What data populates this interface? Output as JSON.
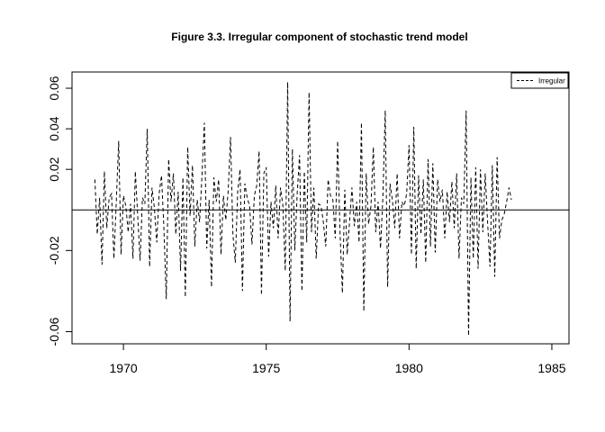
{
  "chart_data": {
    "type": "line",
    "title": "Figure 3.3. Irregular component of stochastic trend model",
    "xlabel": "",
    "ylabel": "",
    "xlim": [
      1968.2,
      1985.6
    ],
    "ylim": [
      -0.066,
      0.068
    ],
    "x_ticks": [
      1970,
      1975,
      1980,
      1985
    ],
    "y_ticks": [
      -0.06,
      -0.02,
      0.02,
      0.04,
      0.06
    ],
    "x_tick_labels": [
      "1970",
      "1975",
      "1980",
      "1985"
    ],
    "y_tick_labels": [
      "-0.06",
      "-0.02",
      "0.02",
      "0.04",
      "0.06"
    ],
    "reference_line": 0,
    "legend": {
      "position": "top-right",
      "entries": [
        "Irregular"
      ]
    },
    "grid": false,
    "series": [
      {
        "name": "Irregular",
        "line_style": "dashed",
        "color": "#000000",
        "start": 1969.0,
        "frequency": 12,
        "values": [
          0.015,
          -0.012,
          0.006,
          -0.027,
          0.019,
          -0.009,
          0.006,
          0.008,
          -0.024,
          0.004,
          0.034,
          -0.022,
          0.007,
          0.002,
          -0.011,
          0.003,
          -0.024,
          0.019,
          -0.003,
          -0.025,
          0.006,
          0.003,
          0.04,
          -0.028,
          0.011,
          0.001,
          -0.016,
          0.008,
          0.017,
          -0.009,
          -0.044,
          0.025,
          0.004,
          0.018,
          -0.012,
          0.009,
          -0.03,
          0.016,
          -0.043,
          0.031,
          -0.003,
          0.022,
          -0.018,
          0.005,
          -0.006,
          0.017,
          0.043,
          -0.019,
          0.005,
          -0.038,
          0.016,
          0.004,
          0.015,
          -0.022,
          0.007,
          -0.005,
          0.009,
          0.036,
          -0.012,
          -0.026,
          0.009,
          0.02,
          -0.04,
          0.013,
          0.006,
          0.002,
          -0.017,
          0.007,
          0.012,
          0.029,
          -0.042,
          0.018,
          0.021,
          -0.023,
          0.004,
          -0.009,
          0.012,
          -0.014,
          0.011,
          0.002,
          -0.03,
          0.063,
          -0.055,
          0.03,
          -0.02,
          0.008,
          0.027,
          -0.04,
          0.019,
          -0.016,
          0.058,
          -0.011,
          0.011,
          -0.024,
          0.003,
          0.002,
          -0.006,
          -0.018,
          0.015,
          0.007,
          0.005,
          -0.014,
          0.034,
          -0.011,
          -0.041,
          0.01,
          -0.022,
          -0.006,
          0.011,
          -0.008,
          0.004,
          -0.016,
          0.043,
          -0.05,
          0.018,
          -0.007,
          0.002,
          0.031,
          -0.011,
          0.004,
          -0.019,
          0.006,
          0.049,
          -0.038,
          0.013,
          0.005,
          -0.009,
          0.018,
          -0.014,
          0.004,
          0.002,
          0.008,
          0.032,
          -0.022,
          0.041,
          -0.029,
          0.017,
          -0.012,
          0.015,
          -0.026,
          0.025,
          -0.018,
          0.023,
          -0.021,
          0.015,
          0.004,
          0.01,
          -0.014,
          0.009,
          -0.006,
          0.014,
          -0.009,
          0.018,
          -0.024,
          0.006,
          0.003,
          0.049,
          -0.062,
          0.016,
          -0.024,
          0.021,
          -0.029,
          0.02,
          -0.011,
          0.018,
          -0.006,
          -0.028,
          0.022,
          -0.033,
          0.026,
          -0.014,
          -0.005,
          -0.002,
          0.004,
          0.011,
          0.005
        ]
      }
    ]
  }
}
